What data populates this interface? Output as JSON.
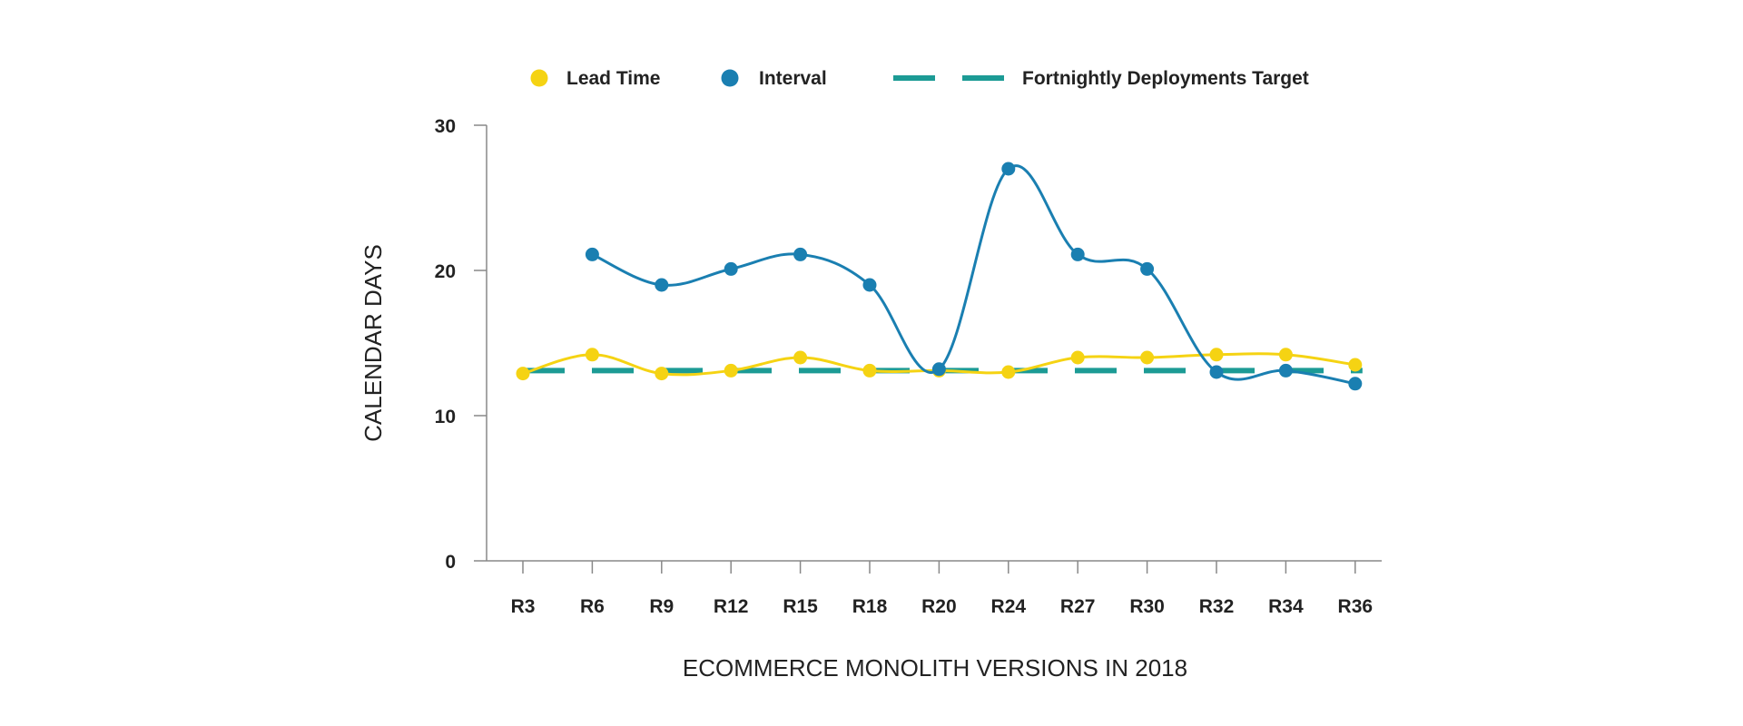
{
  "chart_data": {
    "type": "line",
    "xlabel": "ECOMMERCE MONOLITH VERSIONS IN 2018",
    "ylabel": "CALENDAR DAYS",
    "categories": [
      "R3",
      "R6",
      "R9",
      "R12",
      "R15",
      "R18",
      "R20",
      "R24",
      "R27",
      "R30",
      "R32",
      "R34",
      "R36"
    ],
    "ylim": [
      0,
      30
    ],
    "yticks": [
      "0",
      "10",
      "20",
      "30"
    ],
    "grid": false,
    "legend_position": "top",
    "series": [
      {
        "name": "Lead Time",
        "style": "smooth-line-markers",
        "color": "#f5d313",
        "values": [
          12.9,
          14.2,
          12.9,
          13.1,
          14.0,
          13.1,
          13.1,
          13.0,
          14.0,
          14.0,
          14.2,
          14.2,
          13.5
        ]
      },
      {
        "name": "Interval",
        "style": "smooth-line-markers",
        "color": "#1a7fb1",
        "values": [
          null,
          21.1,
          19.0,
          20.1,
          21.1,
          19.0,
          13.2,
          27.0,
          21.1,
          20.1,
          13.0,
          13.1,
          12.2
        ]
      },
      {
        "name": "Fortnightly Deployments Target",
        "style": "dashed",
        "color": "#1c9b95",
        "values": [
          13.1,
          13.1,
          13.1,
          13.1,
          13.1,
          13.1,
          13.1,
          13.1,
          13.1,
          13.1,
          13.1,
          13.1,
          13.1
        ]
      }
    ],
    "axis_color": "#888888",
    "text_color": "#222222"
  }
}
